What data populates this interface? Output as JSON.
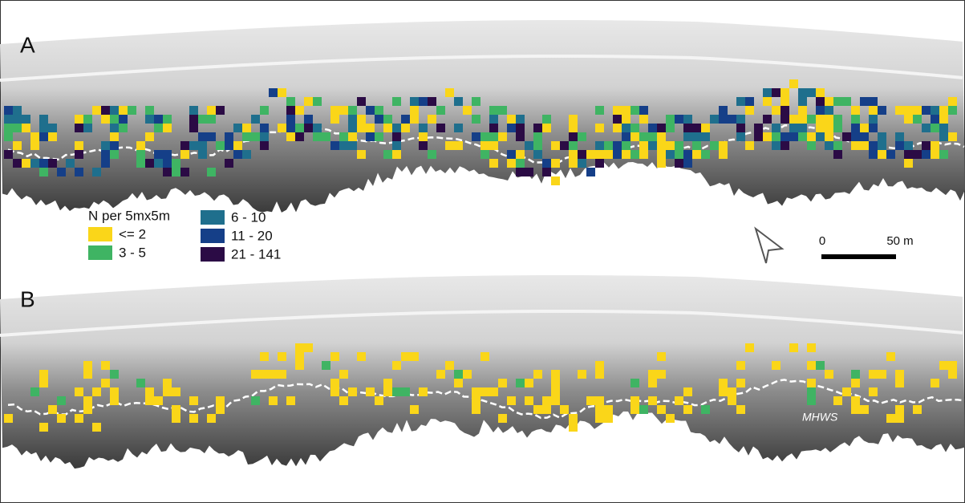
{
  "panels": [
    {
      "label": "A"
    },
    {
      "label": "B",
      "annotation": "MHWS"
    }
  ],
  "legend": {
    "title": "N per 5mx5m",
    "classes": [
      {
        "label": "<= 2",
        "color": "#fad619"
      },
      {
        "label": "3 - 5",
        "color": "#3fb463"
      },
      {
        "label": "6 - 10",
        "color": "#1f6f8d"
      },
      {
        "label": "11 - 20",
        "color": "#153f88"
      },
      {
        "label": "21 - 141",
        "color": "#2b0b45"
      }
    ]
  },
  "scale_bar": {
    "labels": [
      "0",
      "50 m"
    ]
  }
}
